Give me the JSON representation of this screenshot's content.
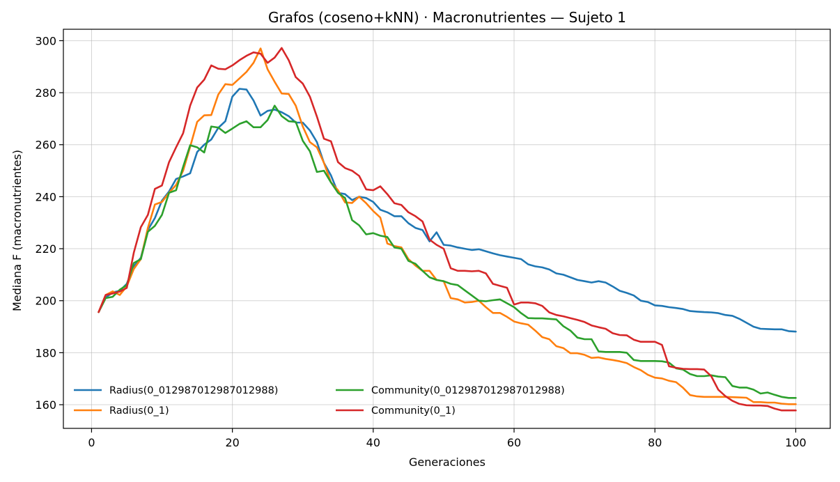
{
  "chart_data": {
    "type": "line",
    "title": "Grafos (coseno+kNN) · Macronutrientes — Sujeto 1",
    "xlabel": "Generaciones",
    "ylabel": "Mediana F (macronutrientes)",
    "xlim": [
      -4,
      104.9
    ],
    "ylim": [
      150.9,
      304.4
    ],
    "xticks": [
      0,
      20,
      40,
      60,
      80,
      100
    ],
    "yticks": [
      160,
      180,
      200,
      220,
      240,
      260,
      280,
      300
    ],
    "grid": true,
    "legend_position": "lower-left",
    "legend_columns": 2,
    "x": [
      1,
      2,
      3,
      4,
      5,
      6,
      7,
      8,
      9,
      10,
      11,
      12,
      13,
      14,
      15,
      16,
      17,
      18,
      19,
      20,
      21,
      22,
      23,
      24,
      25,
      26,
      27,
      28,
      29,
      30,
      31,
      32,
      33,
      34,
      35,
      36,
      37,
      38,
      39,
      40,
      41,
      42,
      43,
      44,
      45,
      46,
      47,
      48,
      49,
      50,
      51,
      52,
      53,
      54,
      55,
      56,
      57,
      58,
      59,
      60,
      61,
      62,
      63,
      64,
      65,
      66,
      67,
      68,
      69,
      70,
      71,
      72,
      73,
      74,
      75,
      76,
      77,
      78,
      79,
      80,
      81,
      82,
      83,
      84,
      85,
      86,
      87,
      88,
      89,
      90,
      91,
      92,
      93,
      94,
      95,
      96,
      97,
      98,
      99,
      100
    ],
    "series": [
      {
        "name": "Radius(0_012987012987012988)",
        "color": "#1f77b4",
        "values": [
          195.6,
          201.2,
          203.2,
          203.8,
          206.5,
          213.2,
          216.5,
          227.2,
          231.8,
          238.5,
          242.0,
          246.8,
          247.8,
          249.0,
          257.2,
          260.0,
          262.0,
          266.5,
          269.0,
          278.5,
          281.5,
          281.2,
          277.0,
          271.2,
          273.0,
          273.5,
          272.5,
          271.0,
          268.5,
          268.5,
          265.5,
          261.0,
          253.0,
          248.2,
          241.5,
          241.0,
          238.7,
          240.0,
          239.5,
          238.0,
          235.0,
          234.0,
          232.5,
          232.5,
          229.8,
          228.0,
          227.2,
          222.8,
          226.3,
          221.5,
          221.2,
          220.5,
          220.0,
          219.5,
          219.8,
          219.0,
          218.2,
          217.5,
          217.0,
          216.5,
          216.0,
          214.0,
          213.2,
          212.8,
          212.0,
          210.5,
          210.0,
          209.0,
          208.0,
          207.5,
          207.0,
          207.5,
          207.0,
          205.5,
          203.8,
          203.0,
          202.0,
          200.0,
          199.5,
          198.2,
          198.0,
          197.5,
          197.2,
          196.8,
          196.0,
          195.8,
          195.6,
          195.5,
          195.2,
          194.5,
          194.2,
          193.0,
          191.5,
          190.0,
          189.2,
          189.1,
          189.0,
          189.0,
          188.3,
          188.1
        ]
      },
      {
        "name": "Radius(0_1)",
        "color": "#ff7f0e",
        "values": [
          195.6,
          202.2,
          203.6,
          202.2,
          205.5,
          212.2,
          216.0,
          228.0,
          237.0,
          238.0,
          241.5,
          244.5,
          250.0,
          259.2,
          268.8,
          271.3,
          271.4,
          279.3,
          283.3,
          283.0,
          285.5,
          288.0,
          291.5,
          297.0,
          289.0,
          284.2,
          279.7,
          279.5,
          275.0,
          267.0,
          261.0,
          259.0,
          253.0,
          245.5,
          242.5,
          237.8,
          237.6,
          240.0,
          237.5,
          234.5,
          232.0,
          222.0,
          221.0,
          220.5,
          216.0,
          213.5,
          211.5,
          211.5,
          208.0,
          207.5,
          201.0,
          200.5,
          199.3,
          199.5,
          200.0,
          197.5,
          195.3,
          195.3,
          193.8,
          192.0,
          191.3,
          190.8,
          188.5,
          186.0,
          185.2,
          182.5,
          181.8,
          179.8,
          179.8,
          179.2,
          178.0,
          178.2,
          177.6,
          177.2,
          176.7,
          176.0,
          174.5,
          173.3,
          171.5,
          170.4,
          170.1,
          169.2,
          168.7,
          166.5,
          163.7,
          163.2,
          163.0,
          163.0,
          163.0,
          163.0,
          162.9,
          162.8,
          162.7,
          161.0,
          161.0,
          160.8,
          160.8,
          160.4,
          160.2,
          160.2
        ]
      },
      {
        "name": "Community(0_012987012987012988)",
        "color": "#2ca02c",
        "values": [
          195.6,
          201.0,
          201.5,
          204.2,
          206.0,
          214.5,
          216.0,
          226.5,
          228.8,
          233.0,
          241.5,
          242.5,
          251.5,
          259.8,
          259.0,
          257.0,
          267.0,
          266.6,
          264.5,
          266.2,
          268.0,
          269.0,
          266.7,
          266.7,
          269.5,
          275.0,
          271.0,
          269.0,
          268.8,
          261.5,
          257.5,
          249.5,
          250.0,
          245.5,
          241.5,
          239.5,
          231.0,
          229.0,
          225.5,
          226.0,
          225.0,
          224.5,
          220.5,
          220.0,
          215.3,
          214.2,
          211.5,
          209.0,
          208.0,
          207.5,
          206.5,
          206.0,
          204.0,
          202.0,
          200.0,
          199.8,
          200.2,
          200.5,
          199.0,
          197.5,
          195.2,
          193.3,
          193.2,
          193.2,
          193.0,
          192.8,
          190.2,
          188.5,
          185.8,
          185.2,
          185.2,
          180.5,
          180.3,
          180.3,
          180.3,
          180.0,
          177.2,
          176.8,
          176.8,
          176.8,
          176.7,
          176.2,
          174.0,
          173.5,
          171.8,
          171.0,
          171.0,
          171.3,
          170.8,
          170.6,
          167.2,
          166.6,
          166.6,
          165.8,
          164.3,
          164.7,
          163.8,
          163.0,
          162.6,
          162.6
        ]
      },
      {
        "name": "Community(0_1)",
        "color": "#d62728",
        "values": [
          195.6,
          202.2,
          202.8,
          203.5,
          204.9,
          218.5,
          228.3,
          233.0,
          243.0,
          244.3,
          253.3,
          259.0,
          264.4,
          275.0,
          282.0,
          285.0,
          290.5,
          289.2,
          289.0,
          290.5,
          292.5,
          294.2,
          295.5,
          295.0,
          291.5,
          293.5,
          297.2,
          292.5,
          286.0,
          283.5,
          278.5,
          270.8,
          262.3,
          261.3,
          253.3,
          251.0,
          250.0,
          248.0,
          242.8,
          242.5,
          244.0,
          241.0,
          237.5,
          236.8,
          234.0,
          232.5,
          230.5,
          223.5,
          221.5,
          220.0,
          212.5,
          211.5,
          211.5,
          211.3,
          211.5,
          210.5,
          206.5,
          205.7,
          205.0,
          198.5,
          199.3,
          199.3,
          199.0,
          198.0,
          195.5,
          194.5,
          194.0,
          193.3,
          192.6,
          191.8,
          190.5,
          189.8,
          189.2,
          187.5,
          186.8,
          186.7,
          185.0,
          184.2,
          184.2,
          184.2,
          183.0,
          174.8,
          174.2,
          173.8,
          173.7,
          173.7,
          173.5,
          171.0,
          165.8,
          163.3,
          161.5,
          160.3,
          159.8,
          159.7,
          159.7,
          159.5,
          158.5,
          157.8,
          157.8,
          157.8
        ]
      }
    ]
  }
}
